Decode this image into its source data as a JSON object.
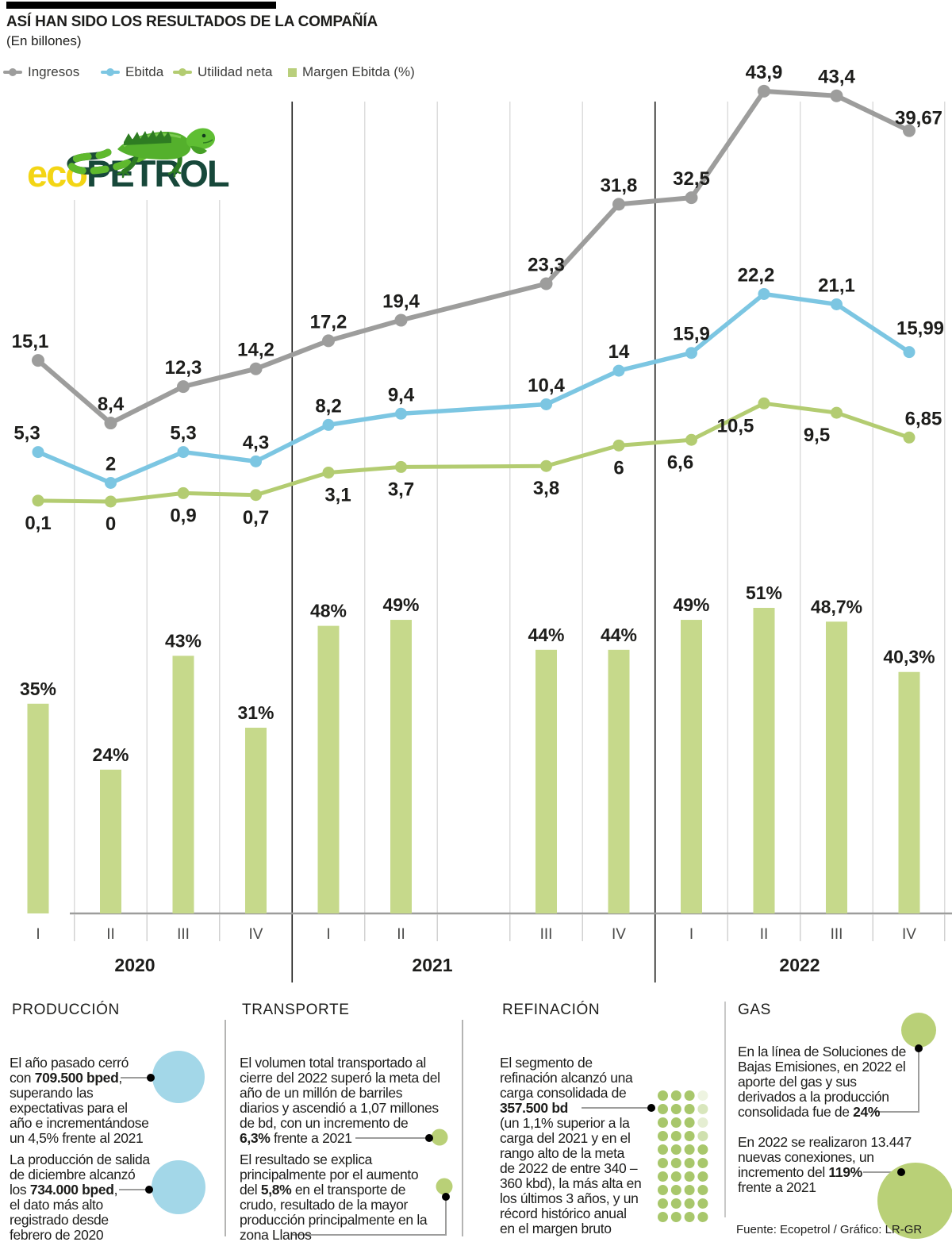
{
  "header": {
    "title": "ASÍ HAN SIDO LOS RESULTADOS DE LA COMPAÑÍA",
    "subtitle": "(En billones)"
  },
  "logo": {
    "eco": "eco",
    "petrol": "PETROL",
    "eco_color": "#f3d515",
    "petrol_color": "#17483a"
  },
  "legend": [
    {
      "label": "Ingresos",
      "type": "line",
      "color": "#9d9d9c"
    },
    {
      "label": "Ebitda",
      "type": "line",
      "color": "#7cc6e2"
    },
    {
      "label": "Utilidad neta",
      "type": "line",
      "color": "#b3cc71"
    },
    {
      "label": "Margen Ebitda (%)",
      "type": "square",
      "color": "#b9cf7c"
    }
  ],
  "chart_data": {
    "type": "combo",
    "unit": "billones",
    "grid": true,
    "legend_position": "top",
    "x_quarters": [
      "I",
      "II",
      "III",
      "IV",
      "I",
      "II",
      "III",
      "IV",
      "I",
      "II",
      "III",
      "IV"
    ],
    "year_groups": [
      {
        "label": "2020",
        "from": 0,
        "to": 3
      },
      {
        "label": "2021",
        "from": 4,
        "to": 7
      },
      {
        "label": "2022",
        "from": 8,
        "to": 11
      }
    ],
    "gap_after_index": 5,
    "series": [
      {
        "name": "Ingresos",
        "color": "#9d9d9c",
        "values": [
          15.1,
          8.4,
          12.3,
          14.2,
          17.2,
          19.4,
          23.3,
          31.8,
          32.5,
          43.9,
          43.4,
          39.67
        ],
        "labels": [
          "15,1",
          "8,4",
          "12,3",
          "14,2",
          "17,2",
          "19,4",
          "23,3",
          "31,8",
          "32,5",
          "43,9",
          "43,4",
          "39,67"
        ],
        "label_pos": "above"
      },
      {
        "name": "Ebitda",
        "color": "#7cc6e2",
        "values": [
          5.3,
          2,
          5.3,
          4.3,
          8.2,
          9.4,
          10.4,
          14,
          15.9,
          22.2,
          21.1,
          15.99
        ],
        "labels": [
          "5,3",
          "2",
          "5,3",
          "4,3",
          "8,2",
          "9,4",
          "10,4",
          "14",
          "15,9",
          "22,2",
          "21,1",
          "15,99"
        ],
        "label_pos": "above"
      },
      {
        "name": "Utilidad neta",
        "color": "#b3cc71",
        "values": [
          0.1,
          0,
          0.9,
          0.7,
          3.1,
          3.7,
          3.8,
          6,
          6.6,
          10.5,
          9.5,
          6.85
        ],
        "labels": [
          "0,1",
          "0",
          "0,9",
          "0,7",
          "3,1",
          "3,7",
          "3,8",
          "6",
          "6,6",
          "10,5",
          "9,5",
          "6,85"
        ],
        "label_pos": "below"
      }
    ],
    "bars": {
      "name": "Margen Ebitda (%)",
      "color": "#c6d98b",
      "values": [
        35,
        24,
        43,
        31,
        48,
        49,
        44,
        44,
        49,
        51,
        48.7,
        40.3
      ],
      "labels": [
        "35%",
        "24%",
        "43%",
        "31%",
        "48%",
        "49%",
        "44%",
        "44%",
        "49%",
        "51%",
        "48,7%",
        "40,3%"
      ]
    }
  },
  "sections": [
    {
      "title": "PRODUCCIÓN",
      "paragraphs": [
        {
          "marker": "circle",
          "marker_color": "#a3d7e8",
          "lines": [
            [
              {
                "t": "El año pasado cerró"
              }
            ],
            [
              {
                "t": "con "
              },
              {
                "t": "709.500 bped",
                "b": true
              },
              {
                "t": ","
              }
            ],
            [
              {
                "t": "superando las"
              }
            ],
            [
              {
                "t": "expectativas para el"
              }
            ],
            [
              {
                "t": "año e incrementándose"
              }
            ],
            [
              {
                "t": "un 4,5% frente al 2021"
              }
            ]
          ]
        },
        {
          "marker": "circle",
          "marker_color": "#a3d7e8",
          "lines": [
            [
              {
                "t": "La producción de salida"
              }
            ],
            [
              {
                "t": "de diciembre alcanzó"
              }
            ],
            [
              {
                "t": "los "
              },
              {
                "t": "734.000 bped",
                "b": true
              },
              {
                "t": ","
              }
            ],
            [
              {
                "t": "el dato más alto"
              }
            ],
            [
              {
                "t": "registrado desde"
              }
            ],
            [
              {
                "t": "febrero de 2020"
              }
            ]
          ]
        }
      ]
    },
    {
      "title": "TRANSPORTE",
      "paragraphs": [
        {
          "marker": "circle",
          "marker_color": "#b9d077",
          "lines": [
            [
              {
                "t": "El volumen total transportado al"
              }
            ],
            [
              {
                "t": "cierre del 2022 superó la meta del"
              }
            ],
            [
              {
                "t": "año de un millón de barriles"
              }
            ],
            [
              {
                "t": "diarios y ascendió a 1,07 millones"
              }
            ],
            [
              {
                "t": "de bd, con un incremento de"
              }
            ],
            [
              {
                "t": "6,3%",
                "b": true
              },
              {
                "t": " frente a 2021"
              }
            ]
          ]
        },
        {
          "marker": "circle",
          "marker_color": "#b9d077",
          "lines": [
            [
              {
                "t": "El resultado se explica"
              }
            ],
            [
              {
                "t": "principalmente por el aumento"
              }
            ],
            [
              {
                "t": "del "
              },
              {
                "t": "5,8%",
                "b": true
              },
              {
                "t": " en el transporte de"
              }
            ],
            [
              {
                "t": "crudo, resultado de la mayor"
              }
            ],
            [
              {
                "t": "producción principalmente en la"
              }
            ],
            [
              {
                "t": "zona Llanos"
              }
            ]
          ]
        }
      ]
    },
    {
      "title": "REFINACIÓN",
      "paragraphs": [
        {
          "marker": "dot-matrix",
          "marker_color": "#a8c76b",
          "lines": [
            [
              {
                "t": "El segmento de"
              }
            ],
            [
              {
                "t": "refinación alcanzó una"
              }
            ],
            [
              {
                "t": "carga consolidada de"
              }
            ],
            [
              {
                "t": "357.500 bd",
                "b": true
              }
            ],
            [
              {
                "t": "(un 1,1% superior a la"
              }
            ],
            [
              {
                "t": "carga del 2021 y en el"
              }
            ],
            [
              {
                "t": "rango alto de la meta"
              }
            ],
            [
              {
                "t": "de 2022 de entre 340 –"
              }
            ],
            [
              {
                "t": "360 kbd), la más alta en"
              }
            ],
            [
              {
                "t": "los últimos 3 años, y un"
              }
            ],
            [
              {
                "t": "récord histórico anual"
              }
            ],
            [
              {
                "t": "en el margen bruto"
              }
            ]
          ]
        }
      ]
    },
    {
      "title": "GAS",
      "paragraphs": [
        {
          "marker": "circle",
          "marker_color": "#b9d077",
          "lines": [
            [
              {
                "t": "En la línea de Soluciones de"
              }
            ],
            [
              {
                "t": "Bajas Emisiones, en 2022 el"
              }
            ],
            [
              {
                "t": "aporte del gas y sus"
              }
            ],
            [
              {
                "t": "derivados a la producción"
              }
            ],
            [
              {
                "t": "consolidada fue de "
              },
              {
                "t": "24%",
                "b": true
              }
            ]
          ]
        },
        {
          "marker": "circle",
          "marker_color": "#b9d077",
          "lines": [
            [
              {
                "t": "En 2022 se realizaron 13.447"
              }
            ],
            [
              {
                "t": "nuevas conexiones, un"
              }
            ],
            [
              {
                "t": "incremento del "
              },
              {
                "t": "119%",
                "b": true
              }
            ],
            [
              {
                "t": "frente a 2021"
              }
            ]
          ]
        }
      ]
    }
  ],
  "footer": {
    "source": "Fuente: Ecopetrol / Gráfico: LR-GR"
  }
}
